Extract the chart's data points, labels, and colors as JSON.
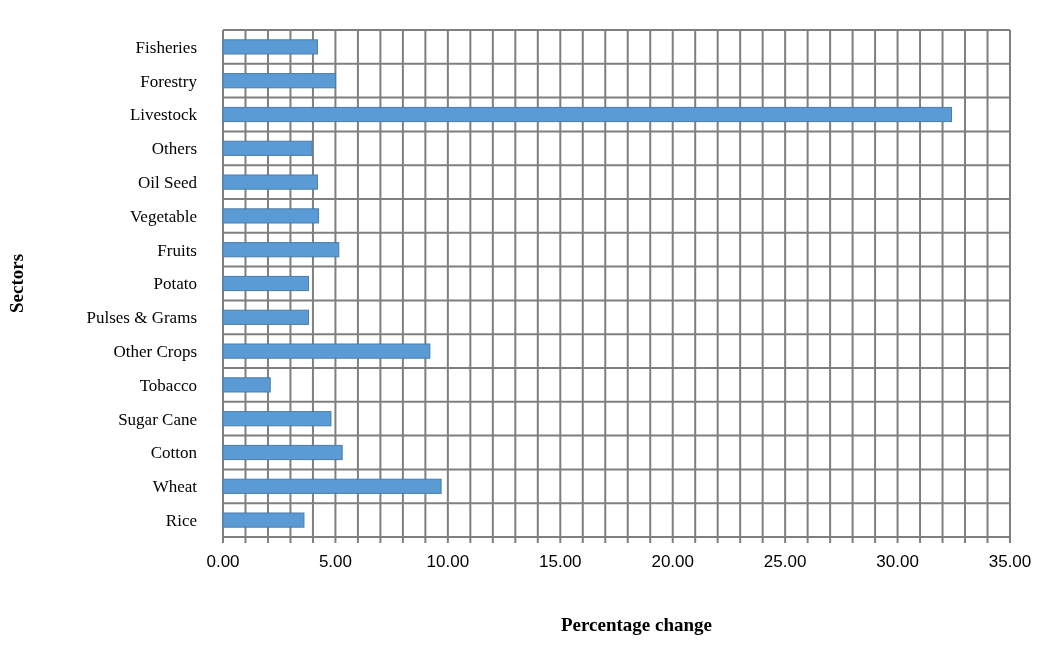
{
  "chart_data": {
    "type": "bar",
    "orientation": "horizontal",
    "xlabel": "Percentage change",
    "ylabel": "Sectors",
    "categories": [
      "Fisheries",
      "Forestry",
      "Livestock",
      "Others",
      "Oil Seed",
      "Vegetable",
      "Fruits",
      "Potato",
      "Pulses & Grams",
      "Other Crops",
      "Tobacco",
      "Sugar Cane",
      "Cotton",
      "Wheat",
      "Rice"
    ],
    "values": [
      4.2,
      5.0,
      32.4,
      3.95,
      4.2,
      4.25,
      5.15,
      3.8,
      3.8,
      9.2,
      2.1,
      4.8,
      5.3,
      9.7,
      3.6
    ],
    "color": "#5b9bd5",
    "xlim": [
      0,
      35
    ],
    "xticks": [
      {
        "value": 0,
        "label": "0.00"
      },
      {
        "value": 1,
        "label": null
      },
      {
        "value": 2,
        "label": null
      },
      {
        "value": 3,
        "label": null
      },
      {
        "value": 4,
        "label": null
      },
      {
        "value": 5,
        "label": "5.00"
      },
      {
        "value": 6,
        "label": null
      },
      {
        "value": 7,
        "label": null
      },
      {
        "value": 8,
        "label": null
      },
      {
        "value": 9,
        "label": null
      },
      {
        "value": 10,
        "label": "10.00"
      },
      {
        "value": 11,
        "label": null
      },
      {
        "value": 12,
        "label": null
      },
      {
        "value": 13,
        "label": null
      },
      {
        "value": 14,
        "label": null
      },
      {
        "value": 15,
        "label": "15.00"
      },
      {
        "value": 16,
        "label": null
      },
      {
        "value": 17,
        "label": null
      },
      {
        "value": 18,
        "label": null
      },
      {
        "value": 19,
        "label": null
      },
      {
        "value": 20,
        "label": "20.00"
      },
      {
        "value": 21,
        "label": null
      },
      {
        "value": 22,
        "label": null
      },
      {
        "value": 23,
        "label": null
      },
      {
        "value": 24,
        "label": null
      },
      {
        "value": 25,
        "label": "25.00"
      },
      {
        "value": 26,
        "label": null
      },
      {
        "value": 27,
        "label": null
      },
      {
        "value": 28,
        "label": null
      },
      {
        "value": 29,
        "label": null
      },
      {
        "value": 30,
        "label": "30.00"
      },
      {
        "value": 31,
        "label": null
      },
      {
        "value": 32,
        "label": null
      },
      {
        "value": 33,
        "label": null
      },
      {
        "value": 34,
        "label": null
      },
      {
        "value": 35,
        "label": "35.00"
      }
    ],
    "grid": true
  }
}
